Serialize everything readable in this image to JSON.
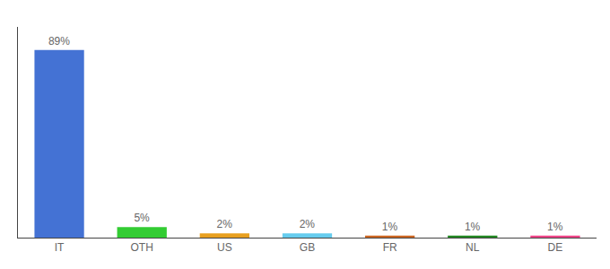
{
  "chart_data": {
    "type": "bar",
    "categories": [
      "IT",
      "OTH",
      "US",
      "GB",
      "FR",
      "NL",
      "DE"
    ],
    "values": [
      89,
      5,
      2,
      2,
      1,
      1,
      1
    ],
    "value_labels": [
      "89%",
      "5%",
      "2%",
      "2%",
      "1%",
      "1%",
      "1%"
    ],
    "colors": [
      "#4472d4",
      "#33cc33",
      "#e8a020",
      "#66ccee",
      "#cc6622",
      "#228822",
      "#ee4488"
    ],
    "data_labels": true,
    "ylim": [
      0,
      100
    ],
    "tick_labels": "x",
    "grid": false
  }
}
